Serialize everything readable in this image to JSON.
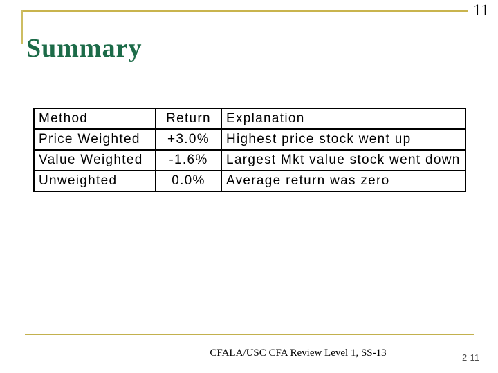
{
  "header": {
    "slide_number": "11",
    "title": "Summary"
  },
  "footer": {
    "text": "CFALA/USC CFA Review Level 1, SS-13",
    "page_number": "2-11"
  },
  "colors": {
    "accent_gold": "#c9b44e",
    "title_green": "#1c6b48",
    "table_border": "#000000",
    "page_number_gray": "#4f4f4f"
  },
  "chart_data": {
    "type": "table",
    "title": "Summary",
    "columns": [
      "Method",
      "Return",
      "Explanation"
    ],
    "rows": [
      [
        "Price Weighted",
        "+3.0%",
        "Highest price stock went up"
      ],
      [
        "Value Weighted",
        "-1.6%",
        "Largest Mkt value stock went down"
      ],
      [
        "Unweighted",
        "0.0%",
        "Average return was zero"
      ]
    ]
  }
}
